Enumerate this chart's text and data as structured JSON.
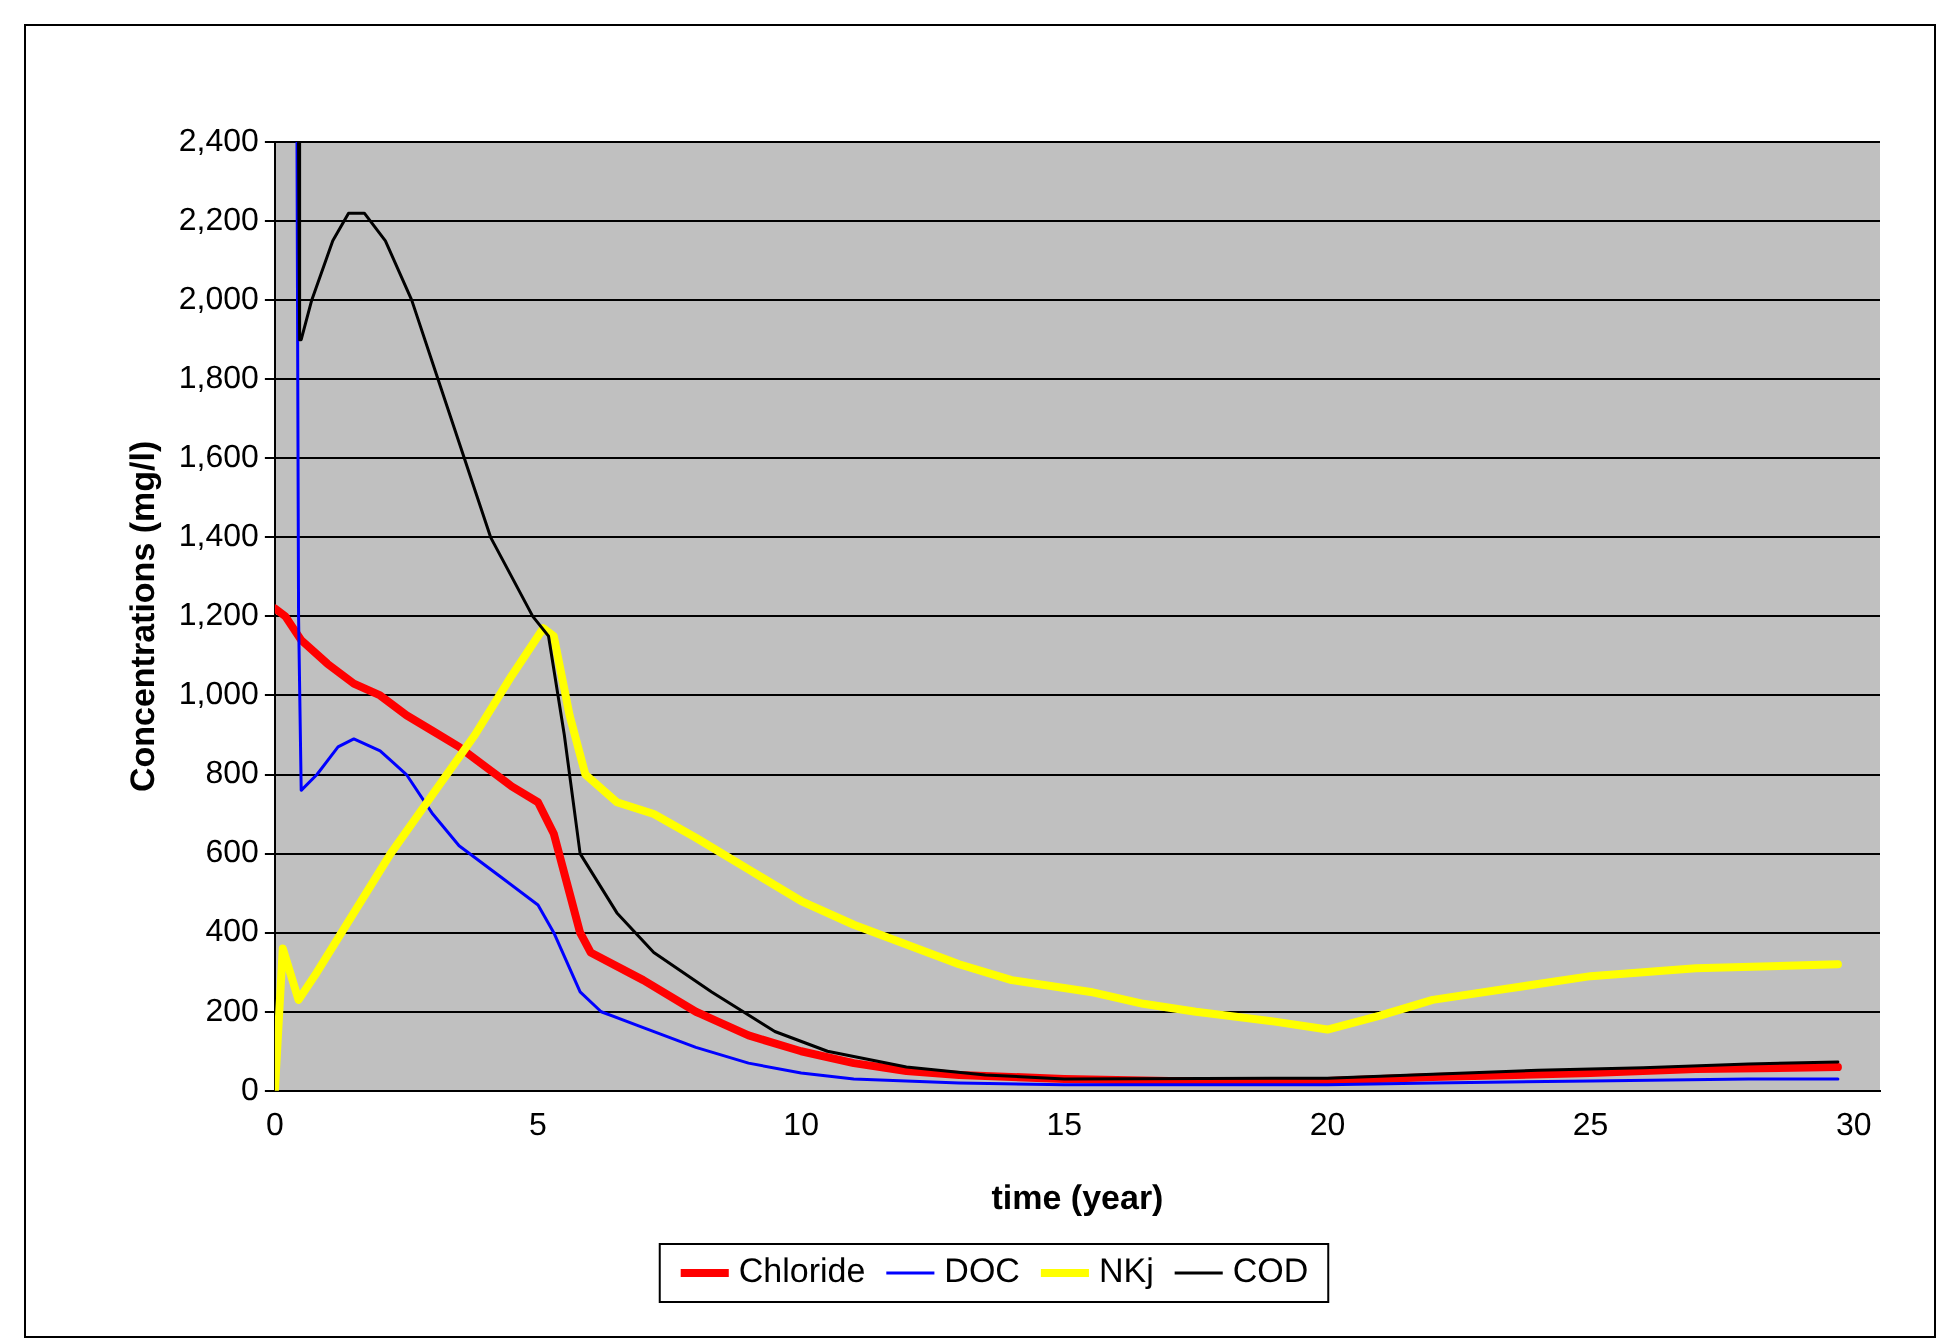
{
  "chart_data": {
    "type": "line",
    "xlabel": "time (year)",
    "ylabel": "Concentrations (mg/l)",
    "xlim": [
      0,
      30.5
    ],
    "xticks": [
      0,
      5,
      10,
      15,
      20,
      25,
      30
    ],
    "ylim": [
      0,
      2400
    ],
    "yticks": [
      0,
      200,
      400,
      600,
      800,
      {
        "value": 1000,
        "label": "1,000"
      },
      {
        "value": 1200,
        "label": "1,200"
      },
      {
        "value": 1400,
        "label": "1,400"
      },
      {
        "value": 1600,
        "label": "1,600"
      },
      {
        "value": 1800,
        "label": "1,800"
      },
      {
        "value": 2000,
        "label": "2,000"
      },
      {
        "value": 2200,
        "label": "2,200"
      },
      {
        "value": 2400,
        "label": "2,400"
      }
    ],
    "grid": "y",
    "legend": "bottom",
    "marker": "none",
    "series": [
      {
        "name": "Chloride",
        "color": "#ff0000",
        "x": [
          0,
          0.2,
          0.5,
          1,
          1.5,
          2,
          2.5,
          3,
          3.5,
          4,
          4.5,
          5,
          5.3,
          5.6,
          5.8,
          6,
          7,
          8,
          9,
          10,
          11,
          12,
          13,
          15,
          17,
          20,
          22,
          25,
          27,
          29.7
        ],
        "values": [
          1220,
          1200,
          1140,
          1080,
          1030,
          1000,
          950,
          910,
          870,
          820,
          770,
          730,
          650,
          500,
          400,
          350,
          280,
          200,
          140,
          100,
          70,
          50,
          40,
          30,
          25,
          25,
          35,
          45,
          55,
          60
        ]
      },
      {
        "name": "DOC",
        "color": "#0000ff",
        "x": [
          0.42,
          0.45,
          0.5,
          0.8,
          1.2,
          1.5,
          2,
          2.5,
          3,
          3.5,
          4.3,
          5,
          5.3,
          5.8,
          6.2,
          7,
          8,
          9,
          10,
          11,
          13,
          15,
          20,
          22,
          25,
          28,
          29.7
        ],
        "values": [
          2400,
          1200,
          760,
          800,
          870,
          890,
          860,
          800,
          700,
          620,
          540,
          470,
          400,
          250,
          200,
          160,
          110,
          70,
          45,
          30,
          20,
          15,
          15,
          20,
          25,
          30,
          30
        ]
      },
      {
        "name": "NKj",
        "color": "#ffff00",
        "x": [
          0,
          0.15,
          0.45,
          0.8,
          1.5,
          2.2,
          3,
          3.8,
          4.5,
          5.1,
          5.3,
          5.6,
          5.9,
          6.5,
          7.2,
          8,
          9,
          10,
          11,
          12,
          13,
          14,
          15.5,
          16.5,
          17.5,
          19,
          20,
          21,
          22,
          23.5,
          25,
          26,
          27,
          29.7
        ],
        "values": [
          0,
          360,
          230,
          300,
          450,
          600,
          750,
          900,
          1050,
          1170,
          1150,
          950,
          800,
          730,
          700,
          640,
          560,
          480,
          420,
          370,
          320,
          280,
          250,
          220,
          200,
          175,
          155,
          190,
          230,
          260,
          290,
          300,
          310,
          320
        ]
      },
      {
        "name": "COD",
        "color": "#000000",
        "x": [
          0.45,
          0.47,
          0.5,
          0.7,
          1.1,
          1.4,
          1.7,
          2.1,
          2.6,
          3.1,
          3.6,
          4.1,
          4.9,
          5.2,
          5.5,
          5.8,
          6.5,
          7.2,
          8.3,
          9.5,
          10.5,
          12,
          13.5,
          15,
          20,
          22,
          24,
          26,
          28,
          29.7
        ],
        "values": [
          2400,
          1900,
          1900,
          2000,
          2150,
          2220,
          2220,
          2150,
          2000,
          1800,
          1600,
          1400,
          1200,
          1150,
          900,
          600,
          450,
          350,
          250,
          150,
          100,
          60,
          40,
          30,
          32,
          42,
          52,
          58,
          68,
          73
        ]
      }
    ]
  }
}
